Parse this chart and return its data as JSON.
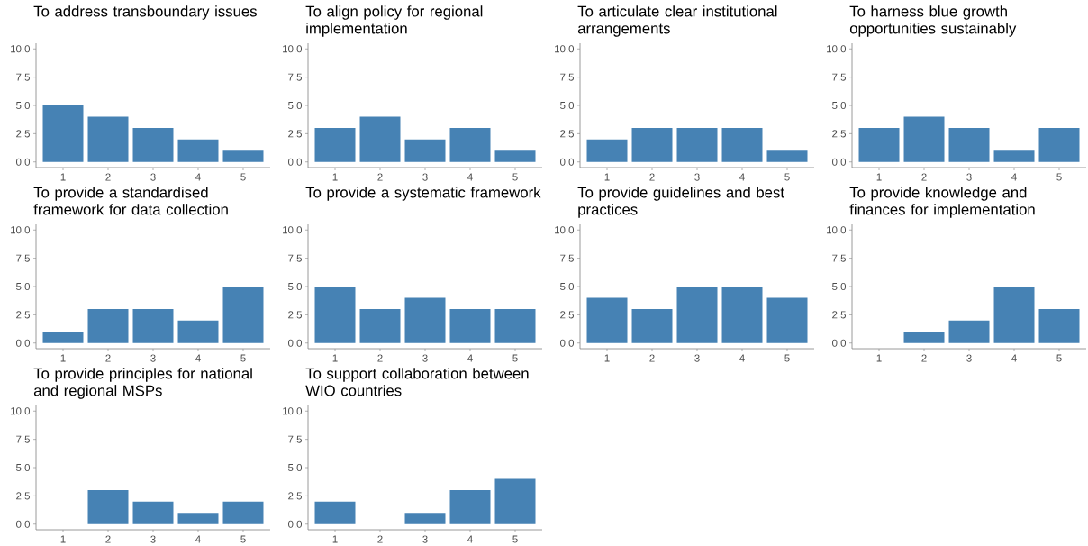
{
  "chart_data": [
    {
      "type": "bar",
      "title": "To address transboundary issues",
      "categories": [
        "1",
        "2",
        "3",
        "4",
        "5"
      ],
      "values": [
        5,
        4,
        3,
        2,
        1
      ],
      "color": "#4682b4",
      "ylim": [
        -0.5,
        10.5
      ],
      "yticks": [
        {
          "value": 0,
          "label": "0.0"
        },
        {
          "value": 2.5,
          "label": "2.5"
        },
        {
          "value": 5,
          "label": "5.0"
        },
        {
          "value": 7.5,
          "label": "7.5"
        },
        {
          "value": 10,
          "label": "10.0"
        }
      ]
    },
    {
      "type": "bar",
      "title": "To align policy for regional implementation",
      "categories": [
        "1",
        "2",
        "3",
        "4",
        "5"
      ],
      "values": [
        3,
        4,
        2,
        3,
        1
      ],
      "color": "#4682b4",
      "ylim": [
        -0.5,
        10.5
      ],
      "yticks": [
        {
          "value": 0,
          "label": "0.0"
        },
        {
          "value": 2.5,
          "label": "2.5"
        },
        {
          "value": 5,
          "label": "5.0"
        },
        {
          "value": 7.5,
          "label": "7.5"
        },
        {
          "value": 10,
          "label": "10.0"
        }
      ]
    },
    {
      "type": "bar",
      "title": "To articulate clear institutional arrangements",
      "categories": [
        "1",
        "2",
        "3",
        "4",
        "5"
      ],
      "values": [
        2,
        3,
        3,
        3,
        1
      ],
      "color": "#4682b4",
      "ylim": [
        -0.5,
        10.5
      ],
      "yticks": [
        {
          "value": 0,
          "label": "0.0"
        },
        {
          "value": 2.5,
          "label": "2.5"
        },
        {
          "value": 5,
          "label": "5.0"
        },
        {
          "value": 7.5,
          "label": "7.5"
        },
        {
          "value": 10,
          "label": "10.0"
        }
      ]
    },
    {
      "type": "bar",
      "title": "To harness blue growth opportunities sustainably",
      "categories": [
        "1",
        "2",
        "3",
        "4",
        "5"
      ],
      "values": [
        3,
        4,
        3,
        1,
        3
      ],
      "color": "#4682b4",
      "ylim": [
        -0.5,
        10.5
      ],
      "yticks": [
        {
          "value": 0,
          "label": "0.0"
        },
        {
          "value": 2.5,
          "label": "2.5"
        },
        {
          "value": 5,
          "label": "5.0"
        },
        {
          "value": 7.5,
          "label": "7.5"
        },
        {
          "value": 10,
          "label": "10.0"
        }
      ]
    },
    {
      "type": "bar",
      "title": "To provide a standardised framework for data collection",
      "categories": [
        "1",
        "2",
        "3",
        "4",
        "5"
      ],
      "values": [
        1,
        3,
        3,
        2,
        5
      ],
      "color": "#4682b4",
      "ylim": [
        -0.5,
        10.5
      ],
      "yticks": [
        {
          "value": 0,
          "label": "0.0"
        },
        {
          "value": 2.5,
          "label": "2.5"
        },
        {
          "value": 5,
          "label": "5.0"
        },
        {
          "value": 7.5,
          "label": "7.5"
        },
        {
          "value": 10,
          "label": "10.0"
        }
      ]
    },
    {
      "type": "bar",
      "title": "To provide a systematic framework",
      "categories": [
        "1",
        "2",
        "3",
        "4",
        "5"
      ],
      "values": [
        5,
        3,
        4,
        3,
        3
      ],
      "color": "#4682b4",
      "ylim": [
        -0.5,
        10.5
      ],
      "yticks": [
        {
          "value": 0,
          "label": "0.0"
        },
        {
          "value": 2.5,
          "label": "2.5"
        },
        {
          "value": 5,
          "label": "5.0"
        },
        {
          "value": 7.5,
          "label": "7.5"
        },
        {
          "value": 10,
          "label": "10.0"
        }
      ]
    },
    {
      "type": "bar",
      "title": "To provide guidelines and best practices",
      "categories": [
        "1",
        "2",
        "3",
        "4",
        "5"
      ],
      "values": [
        4,
        3,
        5,
        5,
        4
      ],
      "color": "#4682b4",
      "ylim": [
        -0.5,
        10.5
      ],
      "yticks": [
        {
          "value": 0,
          "label": "0.0"
        },
        {
          "value": 2.5,
          "label": "2.5"
        },
        {
          "value": 5,
          "label": "5.0"
        },
        {
          "value": 7.5,
          "label": "7.5"
        },
        {
          "value": 10,
          "label": "10.0"
        }
      ]
    },
    {
      "type": "bar",
      "title": "To provide knowledge and finances for implementation",
      "categories": [
        "1",
        "2",
        "3",
        "4",
        "5"
      ],
      "values": [
        0,
        1,
        2,
        5,
        3
      ],
      "color": "#4682b4",
      "ylim": [
        -0.5,
        10.5
      ],
      "yticks": [
        {
          "value": 0,
          "label": "0.0"
        },
        {
          "value": 2.5,
          "label": "2.5"
        },
        {
          "value": 5,
          "label": "5.0"
        },
        {
          "value": 7.5,
          "label": "7.5"
        },
        {
          "value": 10,
          "label": "10.0"
        }
      ]
    },
    {
      "type": "bar",
      "title": "To provide principles for national and regional MSPs",
      "categories": [
        "1",
        "2",
        "3",
        "4",
        "5"
      ],
      "values": [
        0,
        3,
        2,
        1,
        2
      ],
      "color": "#4682b4",
      "ylim": [
        -0.5,
        10.5
      ],
      "yticks": [
        {
          "value": 0,
          "label": "0.0"
        },
        {
          "value": 2.5,
          "label": "2.5"
        },
        {
          "value": 5,
          "label": "5.0"
        },
        {
          "value": 7.5,
          "label": "7.5"
        },
        {
          "value": 10,
          "label": "10.0"
        }
      ]
    },
    {
      "type": "bar",
      "title": "To support collaboration between WIO countries",
      "categories": [
        "1",
        "2",
        "3",
        "4",
        "5"
      ],
      "values": [
        2,
        0,
        1,
        3,
        4
      ],
      "color": "#4682b4",
      "ylim": [
        -0.5,
        10.5
      ],
      "yticks": [
        {
          "value": 0,
          "label": "0.0"
        },
        {
          "value": 2.5,
          "label": "2.5"
        },
        {
          "value": 5,
          "label": "5.0"
        },
        {
          "value": 7.5,
          "label": "7.5"
        },
        {
          "value": 10,
          "label": "10.0"
        }
      ]
    }
  ]
}
